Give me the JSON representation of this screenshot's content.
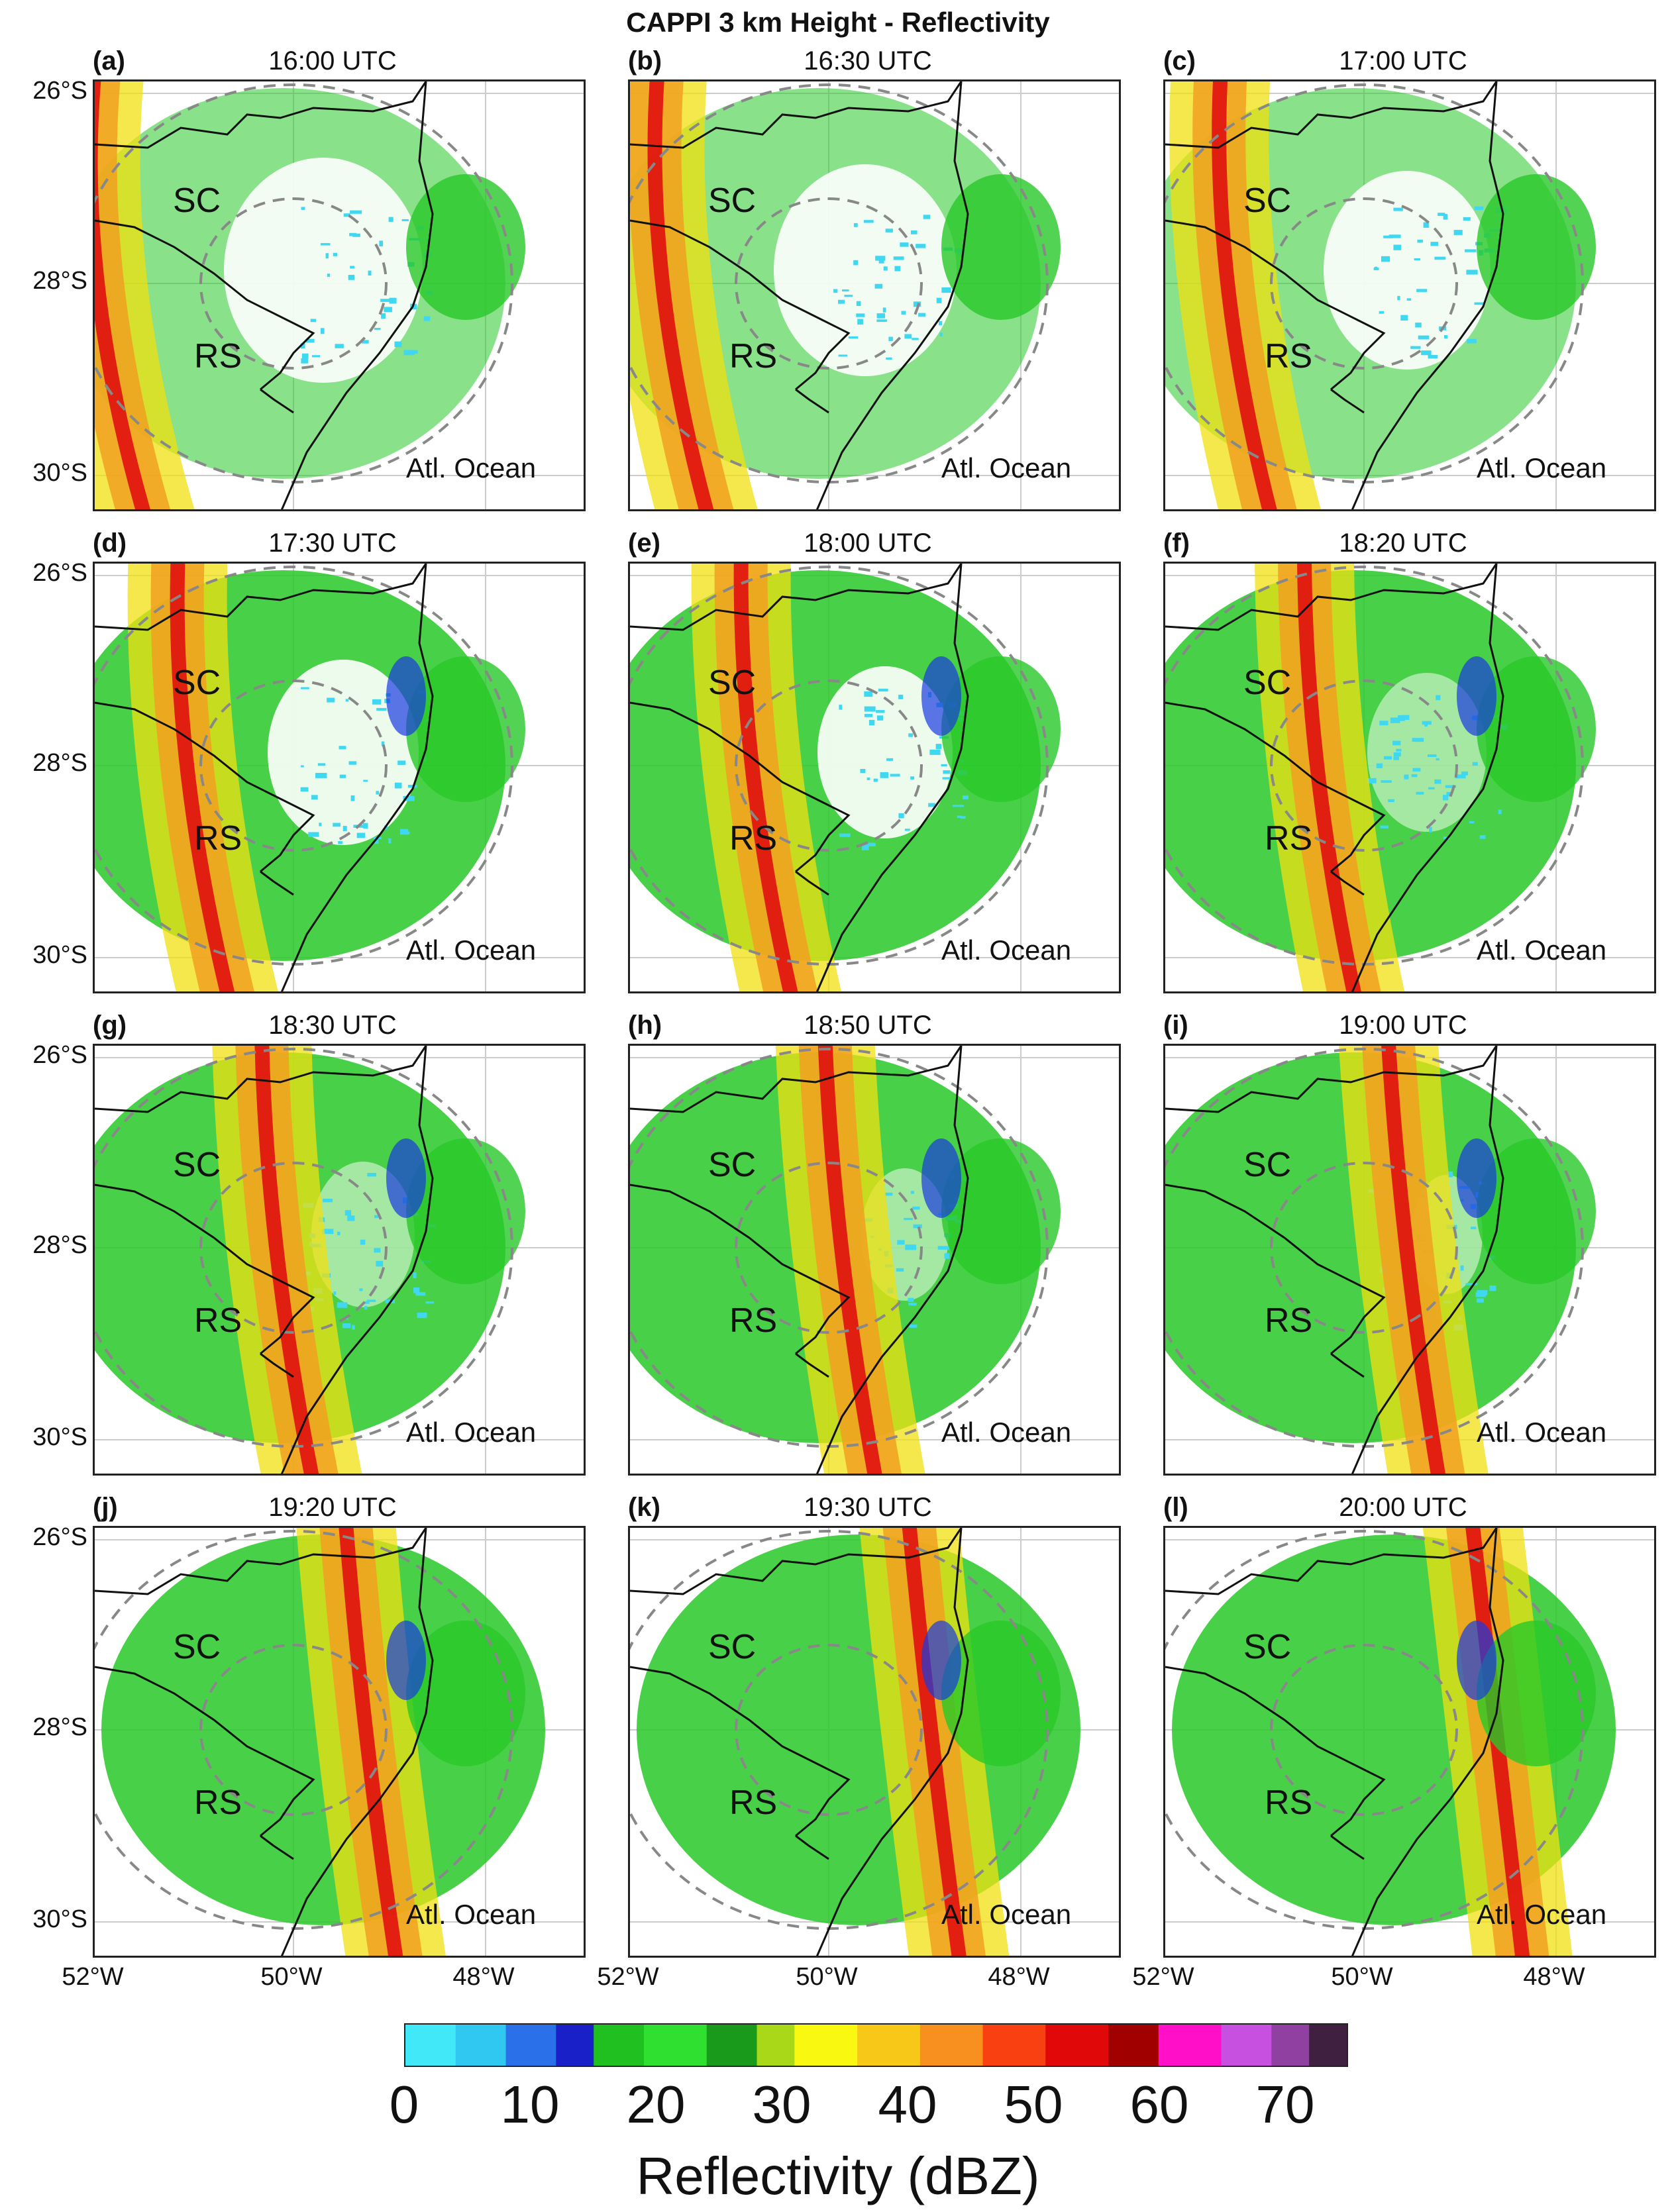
{
  "figure": {
    "title": "CAPPI 3 km Height - Reflectivity"
  },
  "labels": {
    "state_sc": "SC",
    "state_rs": "RS",
    "ocean": "Atl. Ocean"
  },
  "colors": {
    "cyan": "#40d8f0",
    "blue": "#1a3ae0",
    "green": "#28c828",
    "dgreen": "#1a9a1a",
    "yellow": "#f0e010",
    "orange": "#f0a020",
    "red": "#e01010",
    "dred": "#b00808",
    "grid": "#cccccc",
    "ring": "#888888",
    "border": "#111111"
  },
  "chart_data": {
    "type": "heatmap",
    "panels": [
      {
        "label": "(a)",
        "time": "16:00 UTC",
        "stage": 0
      },
      {
        "label": "(b)",
        "time": "16:30 UTC",
        "stage": 1
      },
      {
        "label": "(c)",
        "time": "17:00 UTC",
        "stage": 2
      },
      {
        "label": "(d)",
        "time": "17:30 UTC",
        "stage": 3
      },
      {
        "label": "(e)",
        "time": "18:00 UTC",
        "stage": 4
      },
      {
        "label": "(f)",
        "time": "18:20 UTC",
        "stage": 5
      },
      {
        "label": "(g)",
        "time": "18:30 UTC",
        "stage": 6
      },
      {
        "label": "(h)",
        "time": "18:50 UTC",
        "stage": 7
      },
      {
        "label": "(i)",
        "time": "19:00 UTC",
        "stage": 8
      },
      {
        "label": "(j)",
        "time": "19:20 UTC",
        "stage": 9
      },
      {
        "label": "(k)",
        "time": "19:30 UTC",
        "stage": 10
      },
      {
        "label": "(l)",
        "time": "20:00 UTC",
        "stage": 11
      }
    ],
    "lat_ticks": [
      "26°S",
      "28°S",
      "30°S"
    ],
    "lon_ticks": [
      "52°W",
      "50°W",
      "48°W"
    ],
    "colorbar": {
      "label": "Reflectivity (dBZ)",
      "ticks": [
        "0",
        "10",
        "20",
        "30",
        "40",
        "50",
        "60",
        "70"
      ],
      "range": [
        0,
        75
      ],
      "stops": [
        {
          "v": 0,
          "c": "#40e8f8"
        },
        {
          "v": 4,
          "c": "#30c8f0"
        },
        {
          "v": 8,
          "c": "#2a70e8"
        },
        {
          "v": 12,
          "c": "#1a20c8"
        },
        {
          "v": 15,
          "c": "#20c020"
        },
        {
          "v": 19,
          "c": "#30e030"
        },
        {
          "v": 24,
          "c": "#1a9a1a"
        },
        {
          "v": 28,
          "c": "#a8d818"
        },
        {
          "v": 31,
          "c": "#f8f810"
        },
        {
          "v": 36,
          "c": "#f8c818"
        },
        {
          "v": 41,
          "c": "#f89020"
        },
        {
          "v": 46,
          "c": "#f84010"
        },
        {
          "v": 51,
          "c": "#e00808"
        },
        {
          "v": 56,
          "c": "#a00000"
        },
        {
          "v": 60,
          "c": "#ff10c8"
        },
        {
          "v": 65,
          "c": "#c850e0"
        },
        {
          "v": 69,
          "c": "#9040a0"
        },
        {
          "v": 72,
          "c": "#402040"
        },
        {
          "v": 75,
          "c": "#000000"
        }
      ]
    }
  }
}
